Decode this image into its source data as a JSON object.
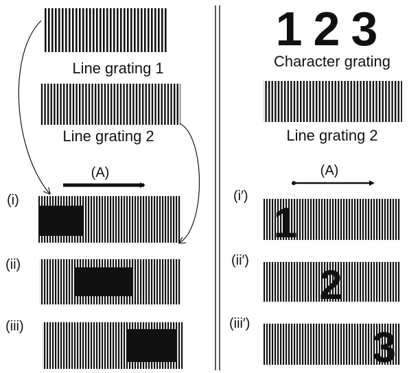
{
  "left_panel": {
    "grating_1_label": "Line grating 1",
    "grating_2_label": "Line grating 2",
    "arrow_label": "(A)",
    "steps": [
      "(i)",
      "(ii)",
      "(iii)"
    ]
  },
  "right_panel": {
    "characters": "123",
    "character_grating_label": "Character grating",
    "grating_2_label": "Line grating 2",
    "arrow_label": "(A)",
    "steps": [
      "(i′)",
      "(ii′)",
      "(iii′)"
    ],
    "revealed_characters": [
      "1",
      "2",
      "3"
    ]
  }
}
